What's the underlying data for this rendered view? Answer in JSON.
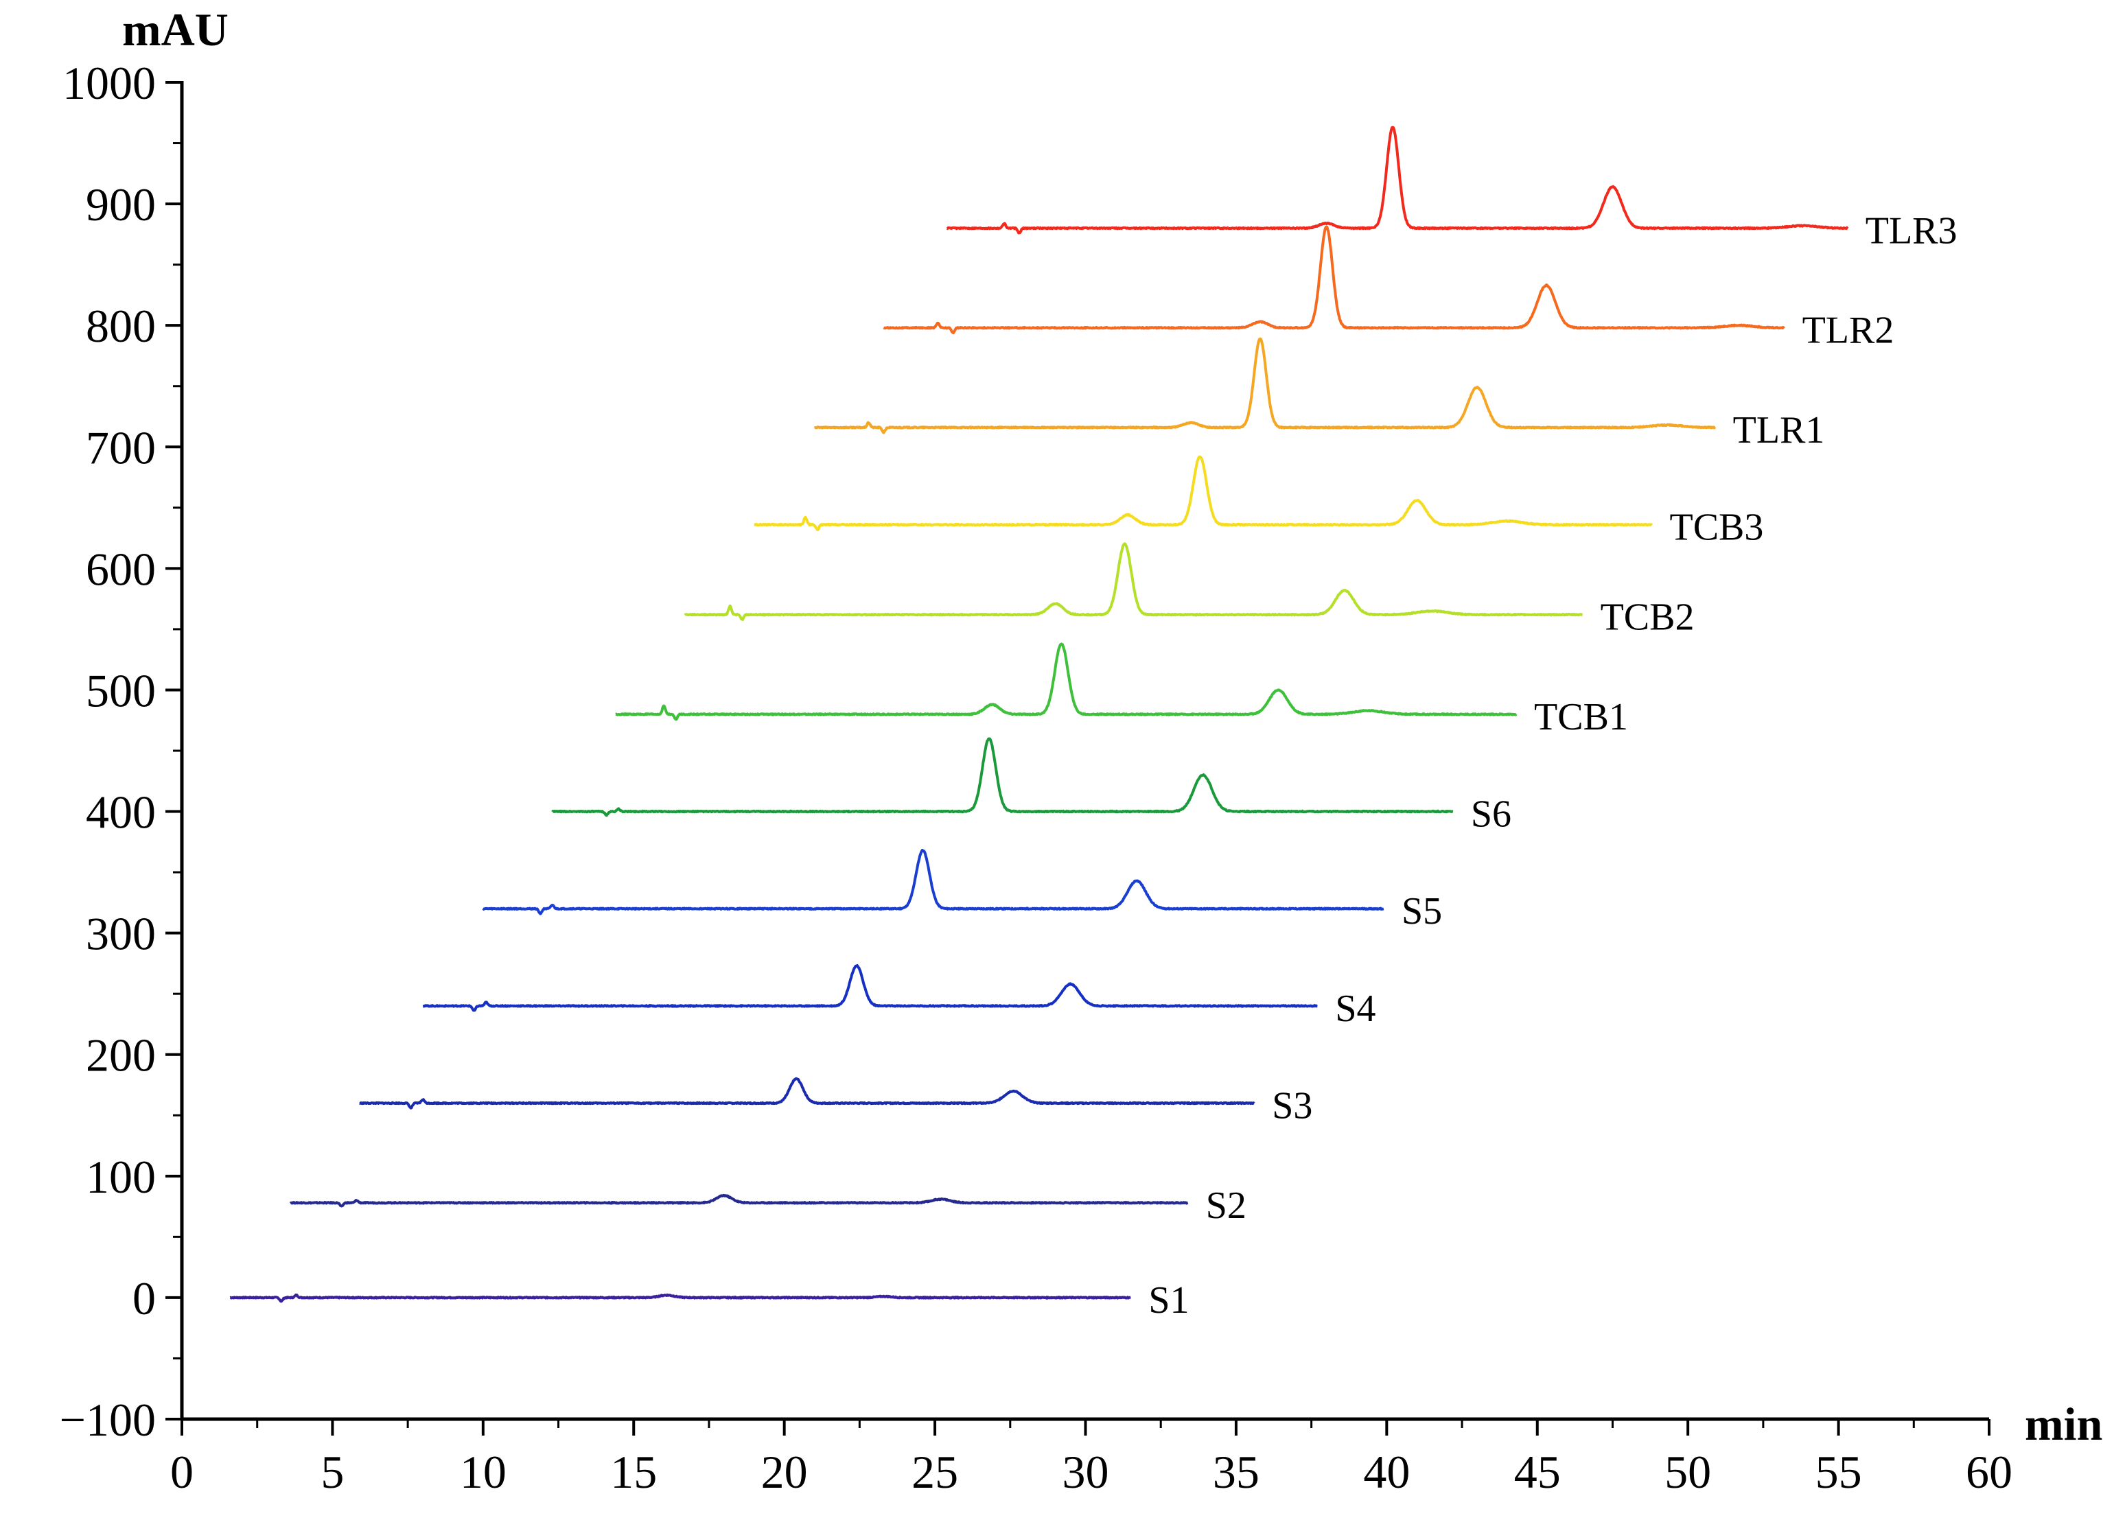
{
  "chart_data": {
    "type": "line",
    "title": "",
    "xlabel": "min",
    "ylabel": "mAU",
    "xlim": [
      0,
      60
    ],
    "ylim": [
      -100,
      1000
    ],
    "xticks": [
      0,
      5,
      10,
      15,
      20,
      25,
      30,
      35,
      40,
      45,
      50,
      55,
      60
    ],
    "yticks": [
      -100,
      0,
      100,
      200,
      300,
      400,
      500,
      600,
      700,
      800,
      900,
      1000
    ],
    "xtick_labels": [
      "0",
      "5",
      "10",
      "15",
      "20",
      "25",
      "30",
      "35",
      "40",
      "45",
      "50",
      "55",
      "60"
    ],
    "ytick_labels": [
      "−100",
      "0",
      "100",
      "200",
      "300",
      "400",
      "500",
      "600",
      "700",
      "800",
      "900",
      "1000"
    ],
    "grid": false,
    "legend": "none",
    "series": [
      {
        "name": "S1",
        "color": "#3a1f9e",
        "x_start": 1.6,
        "x_end": 31.5,
        "baseline": 0,
        "peaks": [
          {
            "x": 16.1,
            "height": 2,
            "width": 0.25
          },
          {
            "x": 23.3,
            "height": 1,
            "width": 0.25
          }
        ],
        "artifacts": [
          {
            "x": 3.3,
            "amp": -3
          },
          {
            "x": 3.8,
            "amp": 2
          }
        ]
      },
      {
        "name": "S2",
        "color": "#262a8f",
        "x_start": 3.6,
        "x_end": 33.4,
        "baseline": 78,
        "peaks": [
          {
            "x": 18.0,
            "height": 6,
            "width": 0.25
          },
          {
            "x": 25.2,
            "height": 3,
            "width": 0.3
          }
        ],
        "artifacts": [
          {
            "x": 5.3,
            "amp": -3
          },
          {
            "x": 5.8,
            "amp": 2
          }
        ]
      },
      {
        "name": "S3",
        "color": "#1a2bb0",
        "x_start": 5.9,
        "x_end": 35.6,
        "baseline": 160,
        "peaks": [
          {
            "x": 20.4,
            "height": 20,
            "width": 0.22
          },
          {
            "x": 27.6,
            "height": 10,
            "width": 0.3
          }
        ],
        "artifacts": [
          {
            "x": 7.6,
            "amp": -4
          },
          {
            "x": 8.0,
            "amp": 3
          }
        ]
      },
      {
        "name": "S4",
        "color": "#1530c2",
        "x_start": 8.0,
        "x_end": 37.7,
        "baseline": 240,
        "peaks": [
          {
            "x": 22.4,
            "height": 33,
            "width": 0.22
          },
          {
            "x": 29.5,
            "height": 18,
            "width": 0.3
          }
        ],
        "artifacts": [
          {
            "x": 9.7,
            "amp": -4
          },
          {
            "x": 10.1,
            "amp": 3
          }
        ]
      },
      {
        "name": "S5",
        "color": "#1a3fd0",
        "x_start": 10.0,
        "x_end": 39.9,
        "baseline": 320,
        "peaks": [
          {
            "x": 24.6,
            "height": 48,
            "width": 0.22
          },
          {
            "x": 31.7,
            "height": 23,
            "width": 0.3
          }
        ],
        "artifacts": [
          {
            "x": 11.9,
            "amp": -4
          },
          {
            "x": 12.3,
            "amp": 3
          }
        ]
      },
      {
        "name": "S6",
        "color": "#1a9a3a",
        "x_start": 12.3,
        "x_end": 42.2,
        "baseline": 400,
        "peaks": [
          {
            "x": 26.8,
            "height": 60,
            "width": 0.22
          },
          {
            "x": 33.9,
            "height": 30,
            "width": 0.3
          }
        ],
        "artifacts": [
          {
            "x": 14.1,
            "amp": -3
          },
          {
            "x": 14.5,
            "amp": 2
          }
        ]
      },
      {
        "name": "TCB1",
        "color": "#3ec03a",
        "x_start": 14.4,
        "x_end": 44.3,
        "baseline": 480,
        "peaks": [
          {
            "x": 26.9,
            "height": 8,
            "width": 0.25
          },
          {
            "x": 29.2,
            "height": 58,
            "width": 0.22
          },
          {
            "x": 36.4,
            "height": 20,
            "width": 0.3
          },
          {
            "x": 39.4,
            "height": 3,
            "width": 0.5
          }
        ],
        "artifacts": [
          {
            "x": 16.0,
            "amp": 7
          },
          {
            "x": 16.4,
            "amp": -4
          }
        ]
      },
      {
        "name": "TCB2",
        "color": "#b5e02a",
        "x_start": 16.7,
        "x_end": 46.5,
        "baseline": 562,
        "peaks": [
          {
            "x": 29.0,
            "height": 9,
            "width": 0.25
          },
          {
            "x": 31.3,
            "height": 58,
            "width": 0.22
          },
          {
            "x": 38.6,
            "height": 20,
            "width": 0.3
          },
          {
            "x": 41.5,
            "height": 3,
            "width": 0.5
          }
        ],
        "artifacts": [
          {
            "x": 18.2,
            "amp": 7
          },
          {
            "x": 18.6,
            "amp": -4
          }
        ]
      },
      {
        "name": "TCB3",
        "color": "#f5dc1e",
        "x_start": 19.0,
        "x_end": 48.8,
        "baseline": 636,
        "peaks": [
          {
            "x": 31.4,
            "height": 8,
            "width": 0.25
          },
          {
            "x": 33.8,
            "height": 56,
            "width": 0.22
          },
          {
            "x": 41.0,
            "height": 20,
            "width": 0.3
          },
          {
            "x": 44.0,
            "height": 3,
            "width": 0.5
          }
        ],
        "artifacts": [
          {
            "x": 20.7,
            "amp": 6
          },
          {
            "x": 21.1,
            "amp": -4
          }
        ]
      },
      {
        "name": "TLR1",
        "color": "#f5a623",
        "x_start": 21.0,
        "x_end": 50.9,
        "baseline": 716,
        "peaks": [
          {
            "x": 33.5,
            "height": 4,
            "width": 0.25
          },
          {
            "x": 35.8,
            "height": 73,
            "width": 0.2
          },
          {
            "x": 43.0,
            "height": 33,
            "width": 0.3
          },
          {
            "x": 49.3,
            "height": 2,
            "width": 0.5
          }
        ],
        "artifacts": [
          {
            "x": 22.8,
            "amp": 4
          },
          {
            "x": 23.3,
            "amp": -4
          }
        ]
      },
      {
        "name": "TLR2",
        "color": "#f56a1e",
        "x_start": 23.3,
        "x_end": 53.2,
        "baseline": 798,
        "peaks": [
          {
            "x": 35.8,
            "height": 5,
            "width": 0.25
          },
          {
            "x": 38.0,
            "height": 83,
            "width": 0.2
          },
          {
            "x": 45.3,
            "height": 35,
            "width": 0.3
          },
          {
            "x": 51.7,
            "height": 2,
            "width": 0.5
          }
        ],
        "artifacts": [
          {
            "x": 25.1,
            "amp": 4
          },
          {
            "x": 25.6,
            "amp": -4
          }
        ]
      },
      {
        "name": "TLR3",
        "color": "#f22a1e",
        "x_start": 25.4,
        "x_end": 55.3,
        "baseline": 880,
        "peaks": [
          {
            "x": 38.0,
            "height": 4,
            "width": 0.25
          },
          {
            "x": 40.2,
            "height": 83,
            "width": 0.2
          },
          {
            "x": 47.5,
            "height": 34,
            "width": 0.3
          },
          {
            "x": 53.8,
            "height": 2,
            "width": 0.5
          }
        ],
        "artifacts": [
          {
            "x": 27.3,
            "amp": 4
          },
          {
            "x": 27.8,
            "amp": -4
          }
        ]
      }
    ]
  }
}
